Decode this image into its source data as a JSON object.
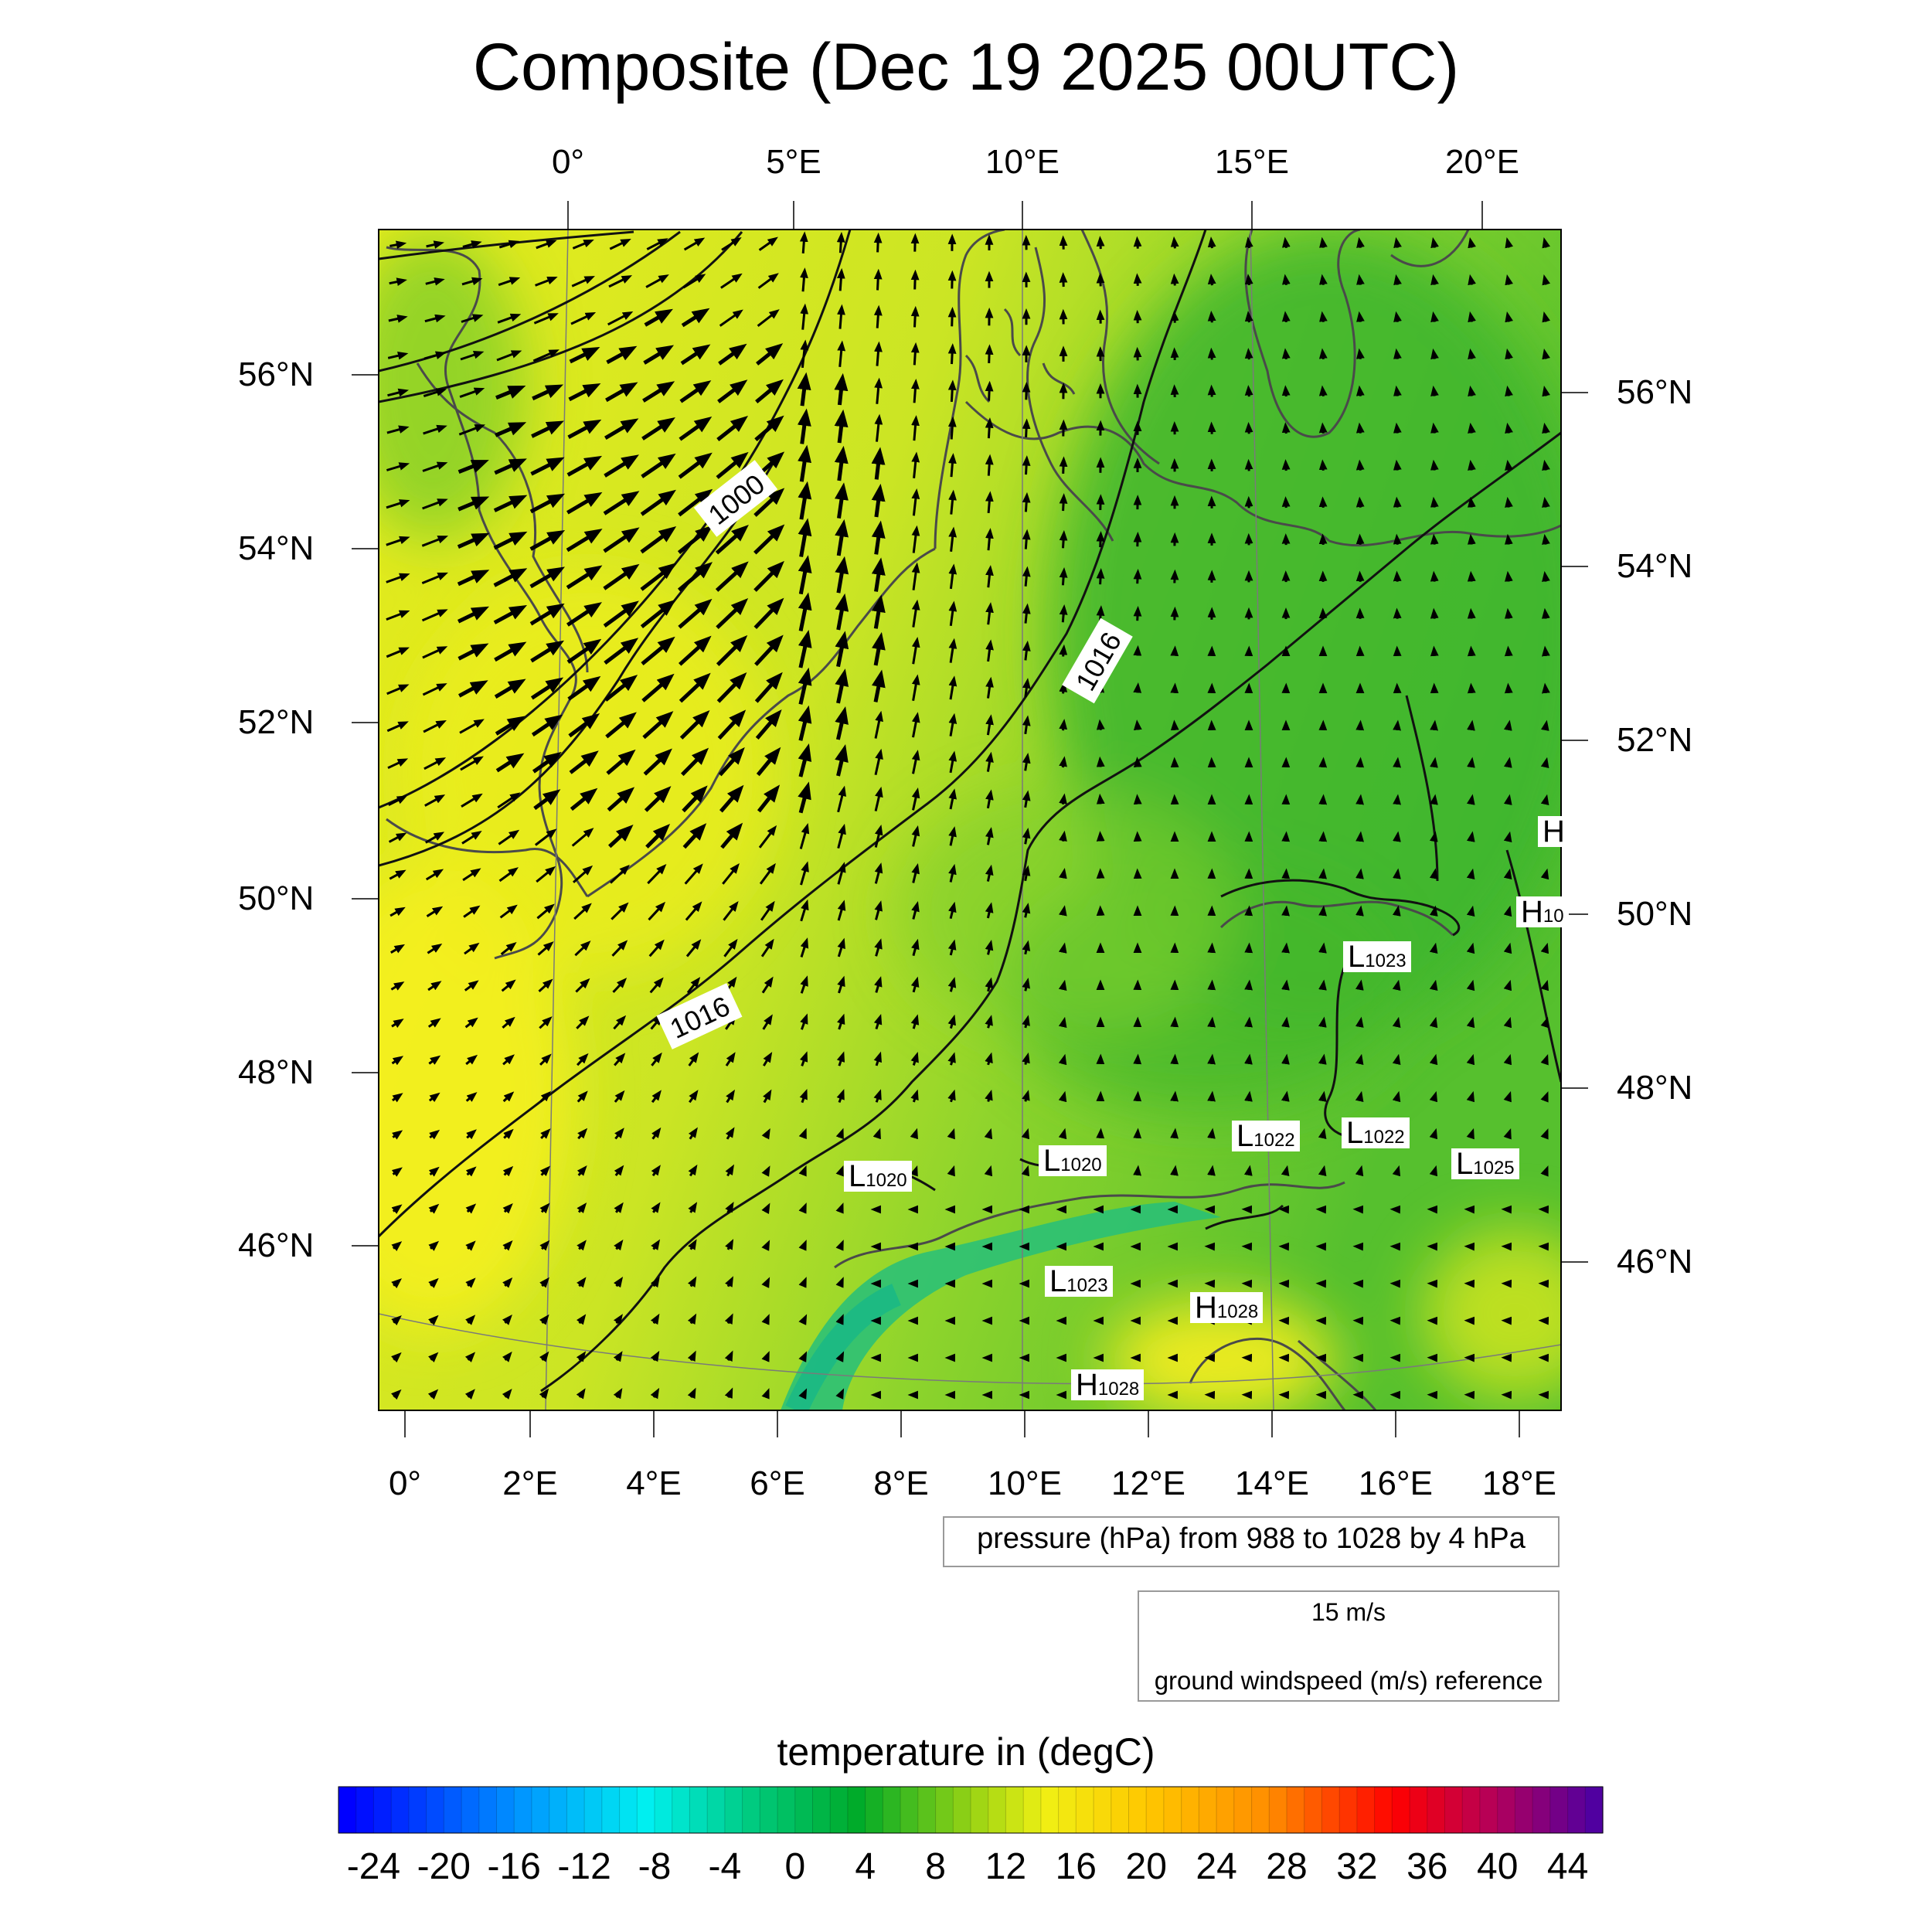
{
  "title": "Composite (Dec 19 2025 00UTC)",
  "top_lon_labels": [
    "0°",
    "5°E",
    "10°E",
    "15°E",
    "20°E"
  ],
  "bottom_lon_labels": [
    "0°",
    "2°E",
    "4°E",
    "6°E",
    "8°E",
    "10°E",
    "12°E",
    "14°E",
    "16°E",
    "18°E"
  ],
  "left_lat_labels": [
    "56°N",
    "54°N",
    "52°N",
    "50°N",
    "48°N",
    "46°N"
  ],
  "right_lat_labels": [
    "56°N",
    "54°N",
    "52°N",
    "50°N",
    "48°N",
    "46°N"
  ],
  "contour_labels": [
    "1000",
    "1016",
    "1016"
  ],
  "pressure_centers": [
    {
      "letter": "L",
      "value": "1023"
    },
    {
      "letter": "L",
      "value": "1020"
    },
    {
      "letter": "L",
      "value": "1020"
    },
    {
      "letter": "L",
      "value": "1022"
    },
    {
      "letter": "L",
      "value": "1022"
    },
    {
      "letter": "L",
      "value": "1025"
    },
    {
      "letter": "L",
      "value": "1023"
    },
    {
      "letter": "H",
      "value": "1028"
    },
    {
      "letter": "H",
      "value": "1028"
    },
    {
      "letter": "H",
      "value": ""
    },
    {
      "letter": "H",
      "value": "10"
    }
  ],
  "legend": {
    "pressure": "pressure (hPa) from 988 to 1028 by 4 hPa",
    "wind_ref_speed": "15 m/s",
    "wind_ref_label": "ground windspeed (m/s) reference"
  },
  "colorbar": {
    "title": "temperature in (degC)",
    "ticks": [
      "-24",
      "-20",
      "-16",
      "-12",
      "-8",
      "-4",
      "0",
      "4",
      "8",
      "12",
      "16",
      "20",
      "24",
      "28",
      "32",
      "36",
      "40",
      "44"
    ],
    "range": [
      -26,
      46
    ]
  },
  "colors": {
    "warm_yellow": "#f2ee1e",
    "mid_green": "#8fd42a",
    "cold_green": "#3cb52e",
    "alpine_teal": "#20c08a"
  }
}
